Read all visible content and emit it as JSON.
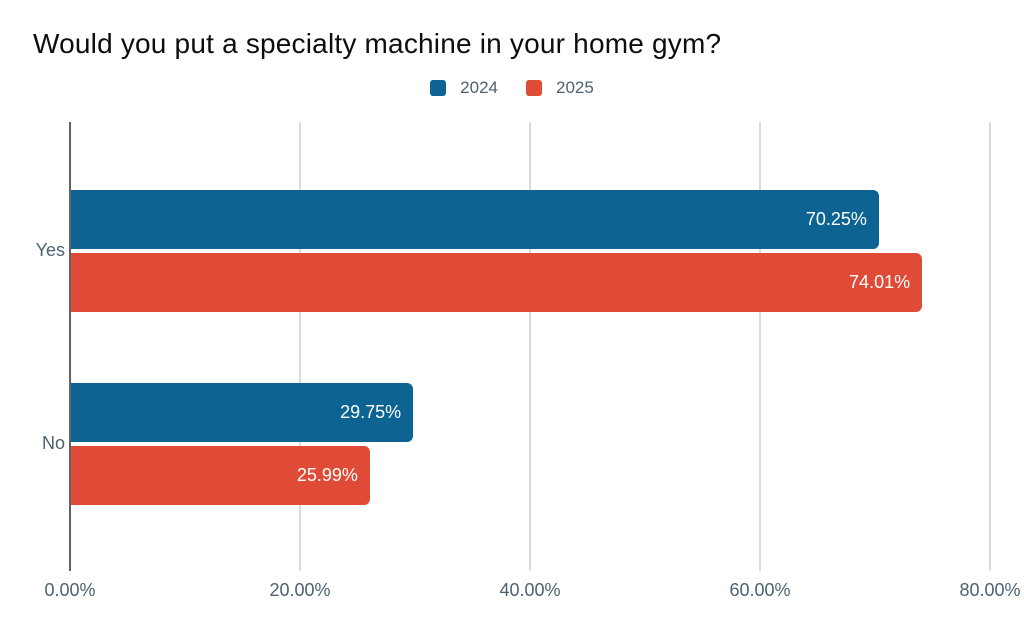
{
  "title": "Would you put a specialty machine in your home gym?",
  "legend": {
    "items": [
      {
        "label": "2024",
        "color": "#0d6493"
      },
      {
        "label": "2025",
        "color": "#e04b38"
      }
    ]
  },
  "chart_data": {
    "type": "bar",
    "orientation": "horizontal",
    "title": "Would you put a specialty machine in your home gym?",
    "categories": [
      "Yes",
      "No"
    ],
    "series": [
      {
        "name": "2024",
        "color": "#0d6493",
        "values": [
          70.25,
          29.75
        ],
        "labels": [
          "70.25%",
          "29.75%"
        ]
      },
      {
        "name": "2025",
        "color": "#e04b38",
        "values": [
          74.01,
          25.99
        ],
        "labels": [
          "74.01%",
          "25.99%"
        ]
      }
    ],
    "xlabel": "",
    "ylabel": "",
    "xlim": [
      0,
      80
    ],
    "x_tick_values": [
      0,
      20,
      40,
      60,
      80
    ],
    "x_ticks": [
      "0.00%",
      "20.00%",
      "40.00%",
      "60.00%",
      "80.00%"
    ],
    "grid": "vertical",
    "legend_position": "top",
    "value_label_position": "inside-end",
    "value_label_color": "#ffffff",
    "axis_text_color": "#4d6271",
    "gridline_color": "#dcdcdc",
    "axis_line_color": "#636363",
    "background_color": "#ffffff"
  }
}
